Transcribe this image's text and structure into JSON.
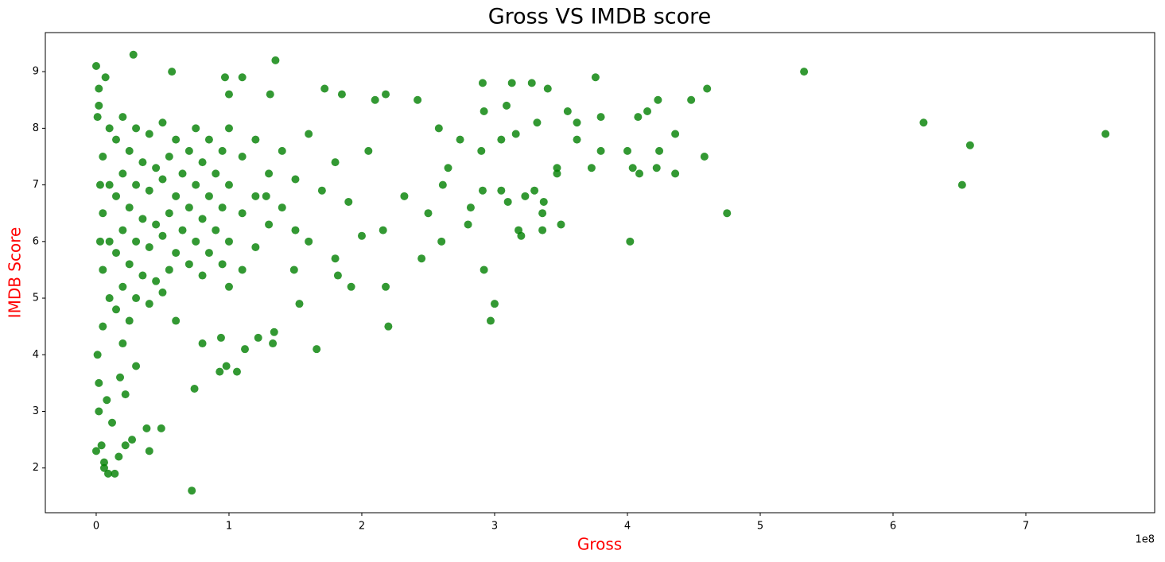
{
  "chart_data": {
    "type": "scatter",
    "title": "Gross VS IMDB score",
    "x_label": "Gross",
    "y_label": "IMDB Score",
    "x_offset_label": "1e8",
    "color": "#008000",
    "x": [
      760000000,
      658000000,
      652000000,
      623000000,
      533000000,
      475000000,
      460000000,
      458000000,
      448000000,
      436000000,
      436000000,
      423000000,
      424000000,
      422000000,
      415000000,
      408000000,
      409000000,
      404000000,
      402000000,
      400000000,
      380000000,
      380000000,
      376000000,
      373000000,
      362000000,
      362000000,
      355000000,
      350000000,
      347000000,
      347000000,
      340000000,
      336000000,
      336000000,
      337000000,
      332000000,
      330000000,
      328000000,
      323000000,
      320000000,
      318000000,
      316000000,
      313000000,
      309000000,
      310000000,
      305000000,
      305000000,
      300000000,
      297000000,
      292000000,
      291000000,
      292000000,
      290000000,
      291000000,
      282000000,
      280000000,
      274000000,
      265000000,
      260000000,
      261000000,
      258000000,
      250000000,
      245000000,
      242000000,
      232000000,
      220000000,
      218000000,
      218000000,
      216000000,
      210000000,
      205000000,
      200000000,
      192000000,
      185000000,
      182000000,
      180000000,
      172000000,
      166000000,
      160000000,
      153000000,
      149000000,
      135000000,
      134000000,
      133000000,
      131000000,
      128000000,
      122000000,
      112000000,
      110000000,
      106000000,
      100000000,
      98000000,
      97000000,
      94000000,
      93000000,
      80000000,
      74000000,
      72000000,
      57000000,
      49000000,
      40000000,
      38000000,
      28000000,
      27000000,
      22000000,
      17000000,
      14000000,
      9000000,
      6000000,
      6000000,
      4000000,
      0,
      0,
      7000000,
      2000000,
      5000000,
      5000000,
      5000000,
      5000000,
      10000000,
      10000000,
      10000000,
      10000000,
      15000000,
      15000000,
      15000000,
      15000000,
      20000000,
      20000000,
      20000000,
      20000000,
      20000000,
      25000000,
      25000000,
      25000000,
      25000000,
      30000000,
      30000000,
      30000000,
      30000000,
      30000000,
      35000000,
      35000000,
      35000000,
      40000000,
      40000000,
      40000000,
      40000000,
      45000000,
      45000000,
      45000000,
      50000000,
      50000000,
      50000000,
      50000000,
      55000000,
      55000000,
      55000000,
      60000000,
      60000000,
      60000000,
      60000000,
      65000000,
      65000000,
      70000000,
      70000000,
      70000000,
      75000000,
      75000000,
      75000000,
      80000000,
      80000000,
      80000000,
      85000000,
      85000000,
      85000000,
      90000000,
      90000000,
      95000000,
      95000000,
      95000000,
      100000000,
      100000000,
      100000000,
      100000000,
      110000000,
      110000000,
      110000000,
      120000000,
      120000000,
      120000000,
      130000000,
      130000000,
      140000000,
      140000000,
      150000000,
      150000000,
      160000000,
      170000000,
      180000000,
      190000000,
      2000000,
      2000000,
      2000000,
      3000000,
      3000000,
      1000000,
      1000000,
      8000000,
      12000000,
      18000000,
      22000000
    ],
    "y": [
      7.9,
      7.7,
      7.0,
      8.1,
      9.0,
      6.5,
      8.7,
      7.5,
      8.5,
      7.9,
      7.2,
      8.5,
      7.6,
      7.3,
      8.3,
      8.2,
      7.2,
      7.3,
      6.0,
      7.6,
      8.2,
      7.6,
      8.9,
      7.3,
      7.8,
      8.1,
      8.3,
      6.3,
      7.3,
      7.2,
      8.7,
      6.2,
      6.5,
      6.7,
      8.1,
      6.9,
      8.8,
      6.8,
      6.1,
      6.2,
      7.9,
      8.8,
      8.4,
      6.7,
      7.8,
      6.9,
      4.9,
      4.6,
      5.5,
      8.8,
      8.3,
      7.6,
      6.9,
      6.6,
      6.3,
      7.8,
      7.3,
      6.0,
      7.0,
      8.0,
      6.5,
      5.7,
      8.5,
      6.8,
      4.5,
      5.2,
      8.6,
      6.2,
      8.5,
      7.6,
      6.1,
      5.2,
      8.6,
      5.4,
      5.7,
      8.7,
      4.1,
      6.0,
      4.9,
      5.5,
      9.2,
      4.4,
      4.2,
      8.6,
      6.8,
      4.3,
      4.1,
      8.9,
      3.7,
      8.6,
      3.8,
      8.9,
      4.3,
      3.7,
      4.2,
      3.4,
      1.6,
      9.0,
      2.7,
      2.3,
      2.7,
      9.3,
      2.5,
      2.4,
      2.2,
      1.9,
      1.9,
      2.0,
      2.1,
      2.4,
      2.3,
      9.1,
      8.9,
      8.7,
      7.5,
      6.5,
      5.5,
      4.5,
      8.0,
      7.0,
      6.0,
      5.0,
      7.8,
      6.8,
      5.8,
      4.8,
      8.2,
      7.2,
      6.2,
      5.2,
      4.2,
      7.6,
      6.6,
      5.6,
      4.6,
      8.0,
      7.0,
      6.0,
      5.0,
      3.8,
      7.4,
      6.4,
      5.4,
      7.9,
      6.9,
      5.9,
      4.9,
      7.3,
      6.3,
      5.3,
      8.1,
      7.1,
      6.1,
      5.1,
      7.5,
      6.5,
      5.5,
      7.8,
      6.8,
      5.8,
      4.6,
      7.2,
      6.2,
      7.6,
      6.6,
      5.6,
      8.0,
      7.0,
      6.0,
      7.4,
      6.4,
      5.4,
      7.8,
      6.8,
      5.8,
      7.2,
      6.2,
      7.6,
      6.6,
      5.6,
      8.0,
      7.0,
      6.0,
      5.2,
      7.5,
      6.5,
      5.5,
      7.8,
      6.8,
      5.9,
      7.2,
      6.3,
      7.6,
      6.6,
      7.1,
      6.2,
      7.9,
      6.9,
      7.4,
      6.7,
      8.4,
      3.5,
      3.0,
      7.0,
      6.0,
      4.0,
      8.2,
      3.2,
      2.8,
      3.6,
      3.3
    ],
    "xlim": [
      -38300000,
      797000000
    ],
    "xticks": [
      0,
      {
        "value": 100000000,
        "label": "1"
      },
      {
        "value": 200000000,
        "label": "2"
      },
      {
        "value": 300000000,
        "label": "3"
      },
      {
        "value": 400000000,
        "label": "4"
      },
      {
        "value": 500000000,
        "label": "5"
      },
      {
        "value": 600000000,
        "label": "6"
      },
      {
        "value": 700000000,
        "label": "7"
      }
    ],
    "ylim": [
      1.21,
      9.69
    ],
    "yticks": [
      2,
      3,
      4,
      5,
      6,
      7,
      8,
      9
    ],
    "grid": false
  }
}
